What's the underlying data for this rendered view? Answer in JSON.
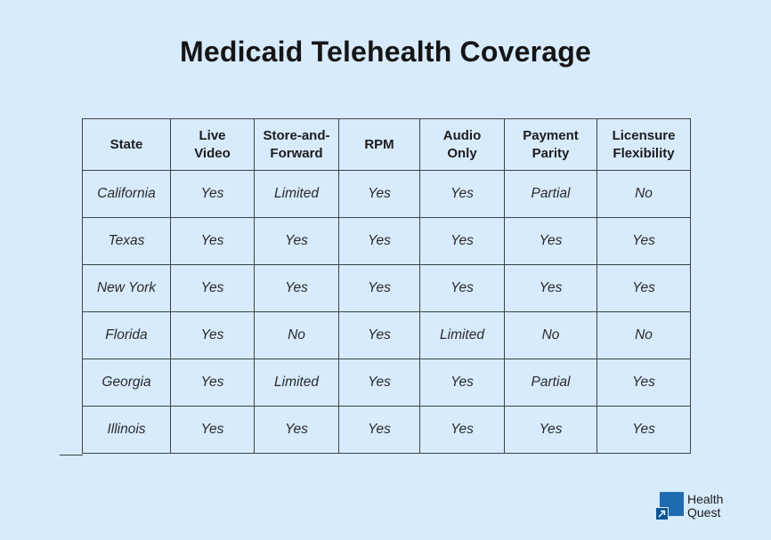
{
  "title": "Medicaid Telehealth Coverage",
  "table": {
    "headers": [
      "State",
      "Live\nVideo",
      "Store-and-\nForward",
      "RPM",
      "Audio\nOnly",
      "Payment\nParity",
      "Licensure\nFlexibility"
    ],
    "rows": [
      [
        "California",
        "Yes",
        "Limited",
        "Yes",
        "Yes",
        "Partial",
        "No"
      ],
      [
        "Texas",
        "Yes",
        "Yes",
        "Yes",
        "Yes",
        "Yes",
        "Yes"
      ],
      [
        "New York",
        "Yes",
        "Yes",
        "Yes",
        "Yes",
        "Yes",
        "Yes"
      ],
      [
        "Florida",
        "Yes",
        "No",
        "Yes",
        "Limited",
        "No",
        "No"
      ],
      [
        "Georgia",
        "Yes",
        "Limited",
        "Yes",
        "Yes",
        "Partial",
        "Yes"
      ],
      [
        "Illinois",
        "Yes",
        "Yes",
        "Yes",
        "Yes",
        "Yes",
        "Yes"
      ]
    ]
  },
  "logo": {
    "line1": "Health",
    "line2": "Quest",
    "icon": "arrow-up-right-icon",
    "brand_color": "#1d6bb0"
  }
}
